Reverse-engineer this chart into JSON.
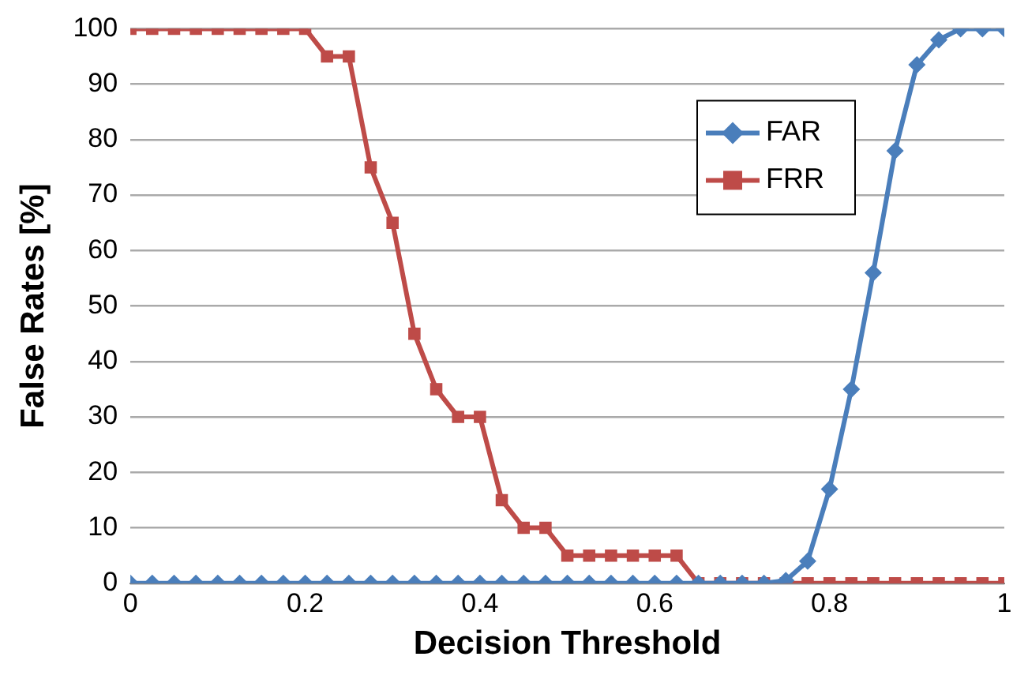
{
  "chart_data": {
    "type": "line",
    "xlabel": "Decision Threshold",
    "ylabel": "False Rates [%]",
    "x": [
      0,
      0.025,
      0.05,
      0.075,
      0.1,
      0.125,
      0.15,
      0.175,
      0.2,
      0.225,
      0.25,
      0.275,
      0.3,
      0.325,
      0.35,
      0.375,
      0.4,
      0.425,
      0.45,
      0.475,
      0.5,
      0.525,
      0.55,
      0.575,
      0.6,
      0.625,
      0.65,
      0.675,
      0.7,
      0.725,
      0.75,
      0.775,
      0.8,
      0.825,
      0.85,
      0.875,
      0.9,
      0.925,
      0.95,
      0.975,
      1
    ],
    "series": [
      {
        "name": "FAR",
        "color": "#4a7ebb",
        "marker": "diamond",
        "values": [
          0,
          0,
          0,
          0,
          0,
          0,
          0,
          0,
          0,
          0,
          0,
          0,
          0,
          0,
          0,
          0,
          0,
          0,
          0,
          0,
          0,
          0,
          0,
          0,
          0,
          0,
          0,
          0,
          0,
          0,
          0.5,
          4,
          17,
          35,
          56,
          78,
          93.5,
          98,
          100,
          100,
          100
        ]
      },
      {
        "name": "FRR",
        "color": "#be4b48",
        "marker": "square",
        "values": [
          100,
          100,
          100,
          100,
          100,
          100,
          100,
          100,
          100,
          95,
          95,
          75,
          65,
          45,
          35,
          30,
          30,
          15,
          10,
          10,
          5,
          5,
          5,
          5,
          5,
          5,
          0,
          0,
          0,
          0,
          0,
          0,
          0,
          0,
          0,
          0,
          0,
          0,
          0,
          0,
          0
        ]
      }
    ],
    "xlim": [
      0,
      1
    ],
    "xticks": [
      0,
      0.2,
      0.4,
      0.6,
      0.8,
      1
    ],
    "ylim": [
      0,
      100
    ],
    "yticks": [
      0,
      10,
      20,
      30,
      40,
      50,
      60,
      70,
      80,
      90,
      100
    ],
    "grid": "y",
    "legend": "top right",
    "line_style": "solid"
  }
}
